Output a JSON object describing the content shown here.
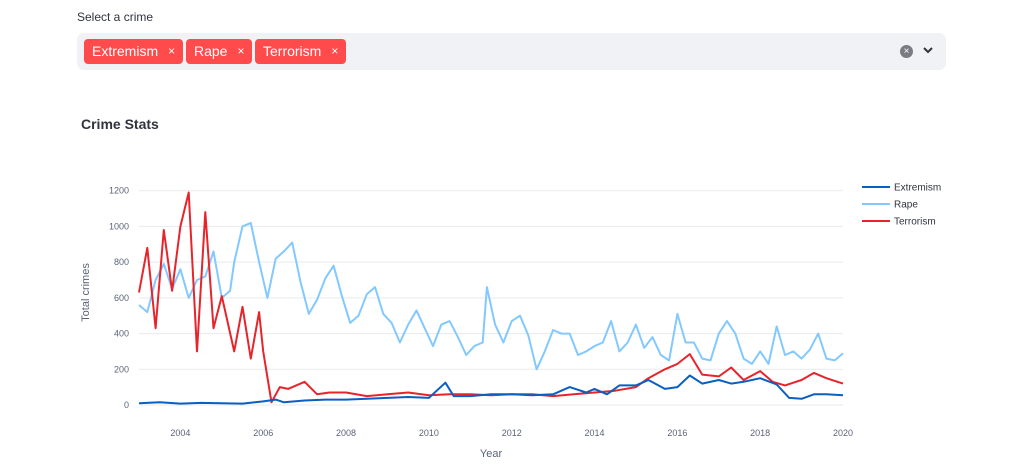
{
  "select": {
    "label": "Select a crime",
    "tags": [
      {
        "label": "Extremism",
        "remove_glyph": "×"
      },
      {
        "label": "Rape",
        "remove_glyph": "×"
      },
      {
        "label": "Terrorism",
        "remove_glyph": "×"
      }
    ],
    "clear_glyph": "×"
  },
  "chart_title": "Crime Stats",
  "chart_data": {
    "type": "line",
    "xlabel": "Year",
    "ylabel": "Total crimes",
    "xlim": [
      2003,
      2020
    ],
    "ylim": [
      0,
      1260
    ],
    "xticks": [
      2004,
      2006,
      2008,
      2010,
      2012,
      2014,
      2016,
      2018,
      2020
    ],
    "yticks": [
      0,
      200,
      400,
      600,
      800,
      1000,
      1200
    ],
    "grid": true,
    "legend_position": "top-right",
    "series": [
      {
        "name": "Extremism",
        "color": "#0a5fc0",
        "points": [
          [
            2003.0,
            10
          ],
          [
            2003.5,
            15
          ],
          [
            2004.0,
            8
          ],
          [
            2004.5,
            12
          ],
          [
            2005.0,
            10
          ],
          [
            2005.5,
            8
          ],
          [
            2006.0,
            20
          ],
          [
            2006.3,
            30
          ],
          [
            2006.5,
            15
          ],
          [
            2007.0,
            25
          ],
          [
            2007.5,
            30
          ],
          [
            2008.0,
            30
          ],
          [
            2008.5,
            35
          ],
          [
            2009.0,
            40
          ],
          [
            2009.5,
            45
          ],
          [
            2010.0,
            40
          ],
          [
            2010.4,
            125
          ],
          [
            2010.6,
            50
          ],
          [
            2011.0,
            50
          ],
          [
            2011.5,
            60
          ],
          [
            2012.0,
            60
          ],
          [
            2012.5,
            55
          ],
          [
            2013.0,
            60
          ],
          [
            2013.4,
            100
          ],
          [
            2013.8,
            70
          ],
          [
            2014.0,
            90
          ],
          [
            2014.3,
            60
          ],
          [
            2014.6,
            110
          ],
          [
            2015.0,
            110
          ],
          [
            2015.3,
            140
          ],
          [
            2015.7,
            90
          ],
          [
            2016.0,
            100
          ],
          [
            2016.3,
            165
          ],
          [
            2016.6,
            120
          ],
          [
            2017.0,
            140
          ],
          [
            2017.3,
            120
          ],
          [
            2017.6,
            130
          ],
          [
            2018.0,
            150
          ],
          [
            2018.4,
            115
          ],
          [
            2018.7,
            40
          ],
          [
            2019.0,
            35
          ],
          [
            2019.3,
            60
          ],
          [
            2019.6,
            60
          ],
          [
            2020.0,
            55
          ]
        ]
      },
      {
        "name": "Rape",
        "color": "#83c9ff",
        "points": [
          [
            2003.0,
            560
          ],
          [
            2003.2,
            520
          ],
          [
            2003.4,
            700
          ],
          [
            2003.6,
            790
          ],
          [
            2003.8,
            650
          ],
          [
            2004.0,
            760
          ],
          [
            2004.2,
            600
          ],
          [
            2004.4,
            700
          ],
          [
            2004.6,
            720
          ],
          [
            2004.8,
            860
          ],
          [
            2005.0,
            600
          ],
          [
            2005.2,
            640
          ],
          [
            2005.3,
            800
          ],
          [
            2005.5,
            1000
          ],
          [
            2005.7,
            1020
          ],
          [
            2005.9,
            800
          ],
          [
            2006.1,
            600
          ],
          [
            2006.3,
            820
          ],
          [
            2006.5,
            860
          ],
          [
            2006.7,
            910
          ],
          [
            2006.9,
            690
          ],
          [
            2007.1,
            510
          ],
          [
            2007.3,
            590
          ],
          [
            2007.5,
            710
          ],
          [
            2007.7,
            780
          ],
          [
            2007.9,
            610
          ],
          [
            2008.1,
            460
          ],
          [
            2008.3,
            500
          ],
          [
            2008.5,
            620
          ],
          [
            2008.7,
            660
          ],
          [
            2008.9,
            510
          ],
          [
            2009.1,
            460
          ],
          [
            2009.3,
            350
          ],
          [
            2009.5,
            450
          ],
          [
            2009.7,
            530
          ],
          [
            2009.9,
            430
          ],
          [
            2010.1,
            330
          ],
          [
            2010.3,
            450
          ],
          [
            2010.5,
            470
          ],
          [
            2010.7,
            380
          ],
          [
            2010.9,
            280
          ],
          [
            2011.1,
            330
          ],
          [
            2011.3,
            350
          ],
          [
            2011.4,
            660
          ],
          [
            2011.6,
            450
          ],
          [
            2011.8,
            350
          ],
          [
            2012.0,
            470
          ],
          [
            2012.2,
            500
          ],
          [
            2012.4,
            390
          ],
          [
            2012.6,
            200
          ],
          [
            2012.8,
            300
          ],
          [
            2013.0,
            420
          ],
          [
            2013.2,
            400
          ],
          [
            2013.4,
            400
          ],
          [
            2013.6,
            280
          ],
          [
            2013.8,
            300
          ],
          [
            2014.0,
            330
          ],
          [
            2014.2,
            350
          ],
          [
            2014.4,
            470
          ],
          [
            2014.6,
            300
          ],
          [
            2014.8,
            350
          ],
          [
            2015.0,
            450
          ],
          [
            2015.2,
            320
          ],
          [
            2015.4,
            380
          ],
          [
            2015.6,
            280
          ],
          [
            2015.8,
            250
          ],
          [
            2016.0,
            510
          ],
          [
            2016.2,
            350
          ],
          [
            2016.4,
            350
          ],
          [
            2016.6,
            260
          ],
          [
            2016.8,
            250
          ],
          [
            2017.0,
            400
          ],
          [
            2017.2,
            470
          ],
          [
            2017.4,
            400
          ],
          [
            2017.6,
            260
          ],
          [
            2017.8,
            230
          ],
          [
            2018.0,
            300
          ],
          [
            2018.2,
            230
          ],
          [
            2018.4,
            440
          ],
          [
            2018.6,
            280
          ],
          [
            2018.8,
            300
          ],
          [
            2019.0,
            260
          ],
          [
            2019.2,
            310
          ],
          [
            2019.4,
            400
          ],
          [
            2019.6,
            260
          ],
          [
            2019.8,
            250
          ],
          [
            2020.0,
            290
          ]
        ]
      },
      {
        "name": "Terrorism",
        "color": "#e8242b",
        "points": [
          [
            2003.0,
            630
          ],
          [
            2003.2,
            880
          ],
          [
            2003.4,
            430
          ],
          [
            2003.6,
            980
          ],
          [
            2003.8,
            640
          ],
          [
            2004.0,
            1000
          ],
          [
            2004.2,
            1190
          ],
          [
            2004.4,
            300
          ],
          [
            2004.6,
            1080
          ],
          [
            2004.8,
            430
          ],
          [
            2005.0,
            610
          ],
          [
            2005.3,
            300
          ],
          [
            2005.5,
            550
          ],
          [
            2005.7,
            260
          ],
          [
            2005.9,
            520
          ],
          [
            2006.0,
            300
          ],
          [
            2006.2,
            15
          ],
          [
            2006.4,
            100
          ],
          [
            2006.6,
            90
          ],
          [
            2007.0,
            130
          ],
          [
            2007.3,
            60
          ],
          [
            2007.6,
            70
          ],
          [
            2008.0,
            70
          ],
          [
            2008.5,
            50
          ],
          [
            2009.0,
            60
          ],
          [
            2009.5,
            70
          ],
          [
            2010.0,
            55
          ],
          [
            2010.5,
            60
          ],
          [
            2011.0,
            60
          ],
          [
            2011.5,
            55
          ],
          [
            2012.0,
            60
          ],
          [
            2012.5,
            60
          ],
          [
            2013.0,
            50
          ],
          [
            2013.5,
            60
          ],
          [
            2014.0,
            70
          ],
          [
            2014.5,
            80
          ],
          [
            2015.0,
            100
          ],
          [
            2015.3,
            150
          ],
          [
            2015.7,
            200
          ],
          [
            2016.0,
            230
          ],
          [
            2016.3,
            285
          ],
          [
            2016.6,
            170
          ],
          [
            2017.0,
            160
          ],
          [
            2017.3,
            210
          ],
          [
            2017.6,
            140
          ],
          [
            2018.0,
            190
          ],
          [
            2018.3,
            130
          ],
          [
            2018.6,
            110
          ],
          [
            2019.0,
            140
          ],
          [
            2019.3,
            180
          ],
          [
            2019.6,
            150
          ],
          [
            2020.0,
            120
          ]
        ]
      }
    ]
  }
}
